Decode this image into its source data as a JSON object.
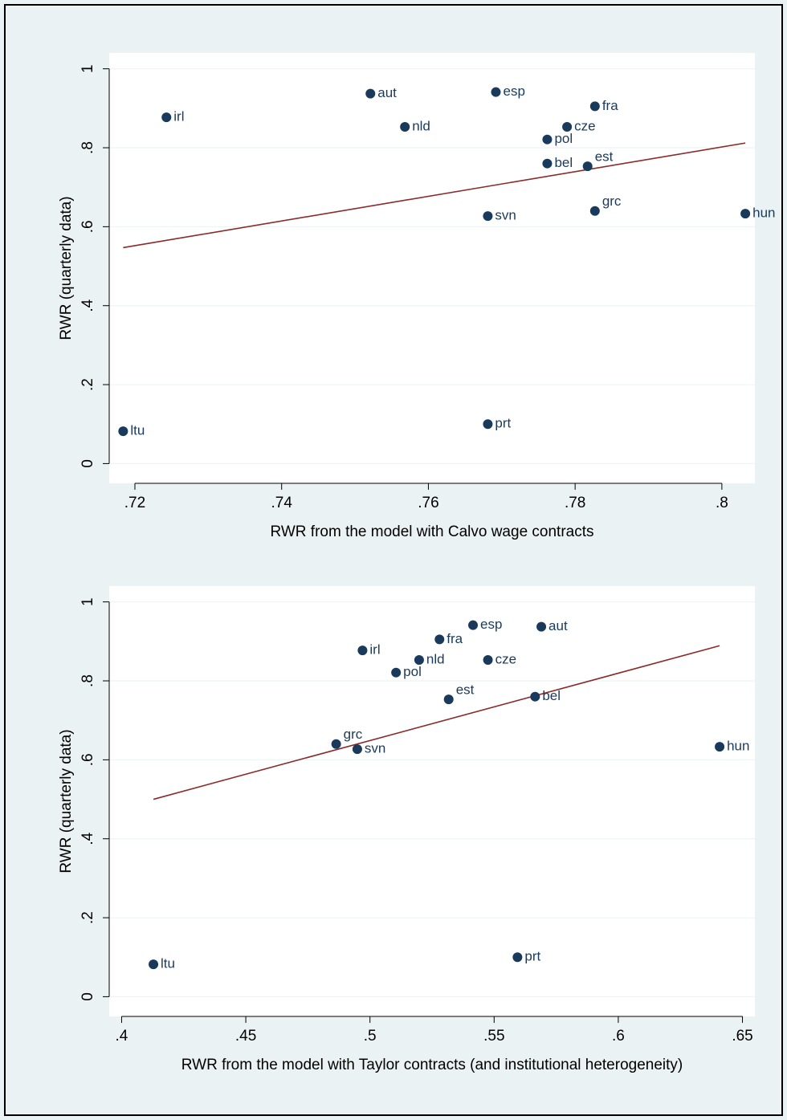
{
  "colors": {
    "page_background": "#eaf2f3",
    "plot_background": "#ffffff",
    "marker": "#1a3a5c",
    "fit_line": "#8b2a2a",
    "grid": "#eaf2f3",
    "axis": "#000000"
  },
  "chart_data": [
    {
      "type": "scatter",
      "title": "",
      "xlabel": "RWR from the model with Calvo wage contracts",
      "ylabel": "RWR (quarterly data)",
      "xlim": [
        0.7165,
        0.8045
      ],
      "ylim": [
        -0.05,
        1.04
      ],
      "xticks": [
        0.72,
        0.74,
        0.76,
        0.78,
        0.8
      ],
      "xtick_labels": [
        ".72",
        ".74",
        ".76",
        ".78",
        ".8"
      ],
      "yticks": [
        0,
        0.2,
        0.4,
        0.6,
        0.8,
        1
      ],
      "ytick_labels": [
        "0",
        ".2",
        ".4",
        ".6",
        ".8",
        "1"
      ],
      "grid": true,
      "points": [
        {
          "label": "irl",
          "x": 0.7243,
          "y": 0.877
        },
        {
          "label": "aut",
          "x": 0.7521,
          "y": 0.937
        },
        {
          "label": "nld",
          "x": 0.7568,
          "y": 0.853
        },
        {
          "label": "esp",
          "x": 0.7692,
          "y": 0.941
        },
        {
          "label": "fra",
          "x": 0.7827,
          "y": 0.905
        },
        {
          "label": "cze",
          "x": 0.7789,
          "y": 0.853
        },
        {
          "label": "pol",
          "x": 0.7762,
          "y": 0.821
        },
        {
          "label": "bel",
          "x": 0.7762,
          "y": 0.76
        },
        {
          "label": "est",
          "x": 0.7817,
          "y": 0.753
        },
        {
          "label": "svn",
          "x": 0.7681,
          "y": 0.627
        },
        {
          "label": "grc",
          "x": 0.7827,
          "y": 0.64
        },
        {
          "label": "hun",
          "x": 0.8032,
          "y": 0.633
        },
        {
          "label": "ltu",
          "x": 0.7184,
          "y": 0.082
        },
        {
          "label": "prt",
          "x": 0.7681,
          "y": 0.1
        }
      ],
      "fit_line": {
        "x": [
          0.7184,
          0.8032
        ],
        "y": [
          0.547,
          0.812
        ]
      }
    },
    {
      "type": "scatter",
      "title": "",
      "xlabel": "RWR from the model with Taylor contracts (and institutional heterogeneity)",
      "ylabel": "RWR (quarterly data)",
      "xlim": [
        0.395,
        0.655
      ],
      "ylim": [
        -0.05,
        1.04
      ],
      "xticks": [
        0.4,
        0.45,
        0.5,
        0.55,
        0.6,
        0.65
      ],
      "xtick_labels": [
        ".4",
        ".45",
        ".5",
        ".55",
        ".6",
        ".65"
      ],
      "yticks": [
        0,
        0.2,
        0.4,
        0.6,
        0.8,
        1
      ],
      "ytick_labels": [
        "0",
        ".2",
        ".4",
        ".6",
        ".8",
        "1"
      ],
      "grid": true,
      "points": [
        {
          "label": "irl",
          "x": 0.497,
          "y": 0.877
        },
        {
          "label": "fra",
          "x": 0.528,
          "y": 0.905
        },
        {
          "label": "esp",
          "x": 0.5415,
          "y": 0.941
        },
        {
          "label": "aut",
          "x": 0.569,
          "y": 0.937
        },
        {
          "label": "nld",
          "x": 0.5198,
          "y": 0.853
        },
        {
          "label": "cze",
          "x": 0.5475,
          "y": 0.853
        },
        {
          "label": "pol",
          "x": 0.5105,
          "y": 0.821
        },
        {
          "label": "est",
          "x": 0.5317,
          "y": 0.753
        },
        {
          "label": "bel",
          "x": 0.5665,
          "y": 0.76
        },
        {
          "label": "grc",
          "x": 0.4864,
          "y": 0.64
        },
        {
          "label": "svn",
          "x": 0.4949,
          "y": 0.627
        },
        {
          "label": "hun",
          "x": 0.6408,
          "y": 0.633
        },
        {
          "label": "ltu",
          "x": 0.4128,
          "y": 0.082
        },
        {
          "label": "prt",
          "x": 0.5594,
          "y": 0.1
        }
      ],
      "fit_line": {
        "x": [
          0.4128,
          0.6408
        ],
        "y": [
          0.5,
          0.889
        ]
      }
    }
  ]
}
